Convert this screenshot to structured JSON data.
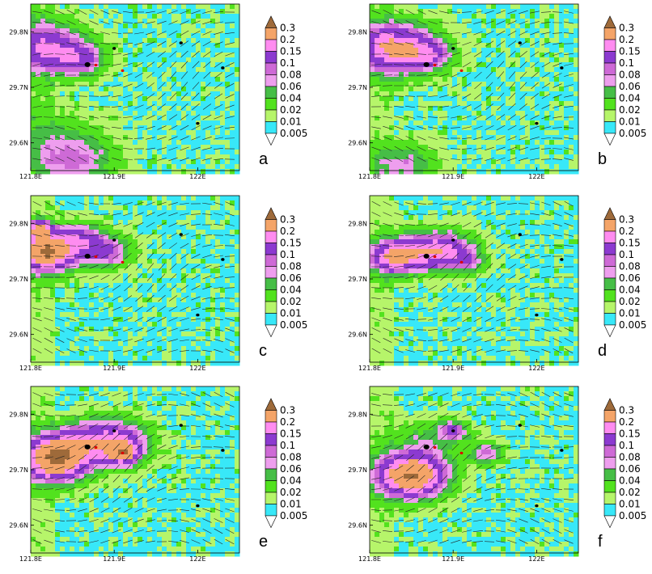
{
  "colors": {
    "levels": [
      "#ffffff",
      "#38e8f8",
      "#b6f56a",
      "#52e21e",
      "#46be46",
      "#ee9eee",
      "#ce6ad6",
      "#8c3ad0",
      "#ff8cf0",
      "#f4a468",
      "#9e6a3a"
    ],
    "palette_note": "white, cyan, lime, green, dark green, light pink, pink, orchid, purple, orange, brown"
  },
  "chart_data": [
    {
      "type": "heatmap",
      "panel": "a",
      "xticks": [
        "121.8E",
        "121.9E",
        "122E"
      ],
      "yticks": [
        "29.6N",
        "29.7N",
        "29.8N"
      ],
      "xlim": [
        121.8,
        122.05
      ],
      "ylim": [
        29.55,
        29.85
      ],
      "colorbar": [
        "0.3",
        "0.2",
        "0.15",
        "0.1",
        "0.08",
        "0.06",
        "0.04",
        "0.02",
        "0.01",
        "0.005"
      ],
      "blobs": [
        {
          "lon": 121.82,
          "lat": 29.77,
          "r": 0.045,
          "peak": 0.15
        },
        {
          "lon": 121.86,
          "lat": 29.75,
          "r": 0.03,
          "peak": 0.1
        },
        {
          "lon": 121.85,
          "lat": 29.57,
          "r": 0.05,
          "peak": 0.08
        },
        {
          "lon": 121.82,
          "lat": 29.62,
          "r": 0.05,
          "peak": 0.02
        }
      ]
    },
    {
      "type": "heatmap",
      "panel": "b",
      "xticks": [
        "121.8E",
        "121.9E",
        "122E"
      ],
      "yticks": [
        "29.6N",
        "29.7N",
        "29.8N"
      ],
      "xlim": [
        121.8,
        122.05
      ],
      "ylim": [
        29.55,
        29.85
      ],
      "colorbar": [
        "0.3",
        "0.2",
        "0.15",
        "0.1",
        "0.08",
        "0.06",
        "0.04",
        "0.02",
        "0.01",
        "0.005"
      ],
      "blobs": [
        {
          "lon": 121.83,
          "lat": 29.77,
          "r": 0.045,
          "peak": 0.2
        },
        {
          "lon": 121.87,
          "lat": 29.76,
          "r": 0.03,
          "peak": 0.1
        },
        {
          "lon": 121.84,
          "lat": 29.56,
          "r": 0.04,
          "peak": 0.06
        }
      ]
    },
    {
      "type": "heatmap",
      "panel": "c",
      "xticks": [
        "121.8E",
        "121.9E",
        "122E"
      ],
      "yticks": [
        "29.6N",
        "29.7N",
        "29.8N"
      ],
      "xlim": [
        121.8,
        122.05
      ],
      "ylim": [
        29.55,
        29.85
      ],
      "colorbar": [
        "0.3",
        "0.2",
        "0.15",
        "0.1",
        "0.08",
        "0.06",
        "0.04",
        "0.02",
        "0.01",
        "0.005"
      ],
      "blobs": [
        {
          "lon": 121.82,
          "lat": 29.75,
          "r": 0.035,
          "peak": 0.3
        },
        {
          "lon": 121.86,
          "lat": 29.77,
          "r": 0.03,
          "peak": 0.1
        },
        {
          "lon": 121.89,
          "lat": 29.75,
          "r": 0.03,
          "peak": 0.1
        },
        {
          "lon": 121.81,
          "lat": 29.79,
          "r": 0.015,
          "peak": 0.2
        }
      ]
    },
    {
      "type": "heatmap",
      "panel": "d",
      "xticks": [
        "121.8E",
        "121.9E",
        "122E"
      ],
      "yticks": [
        "29.6N",
        "29.7N",
        "29.8N"
      ],
      "xlim": [
        121.8,
        122.05
      ],
      "ylim": [
        29.55,
        29.85
      ],
      "colorbar": [
        "0.3",
        "0.2",
        "0.15",
        "0.1",
        "0.08",
        "0.06",
        "0.04",
        "0.02",
        "0.01",
        "0.005"
      ],
      "blobs": [
        {
          "lon": 121.83,
          "lat": 29.74,
          "r": 0.03,
          "peak": 0.2
        },
        {
          "lon": 121.87,
          "lat": 29.75,
          "r": 0.035,
          "peak": 0.15
        },
        {
          "lon": 121.9,
          "lat": 29.75,
          "r": 0.03,
          "peak": 0.1
        },
        {
          "lon": 121.92,
          "lat": 29.73,
          "r": 0.02,
          "peak": 0.06
        }
      ]
    },
    {
      "type": "heatmap",
      "panel": "e",
      "xticks": [
        "121.8E",
        "121.9E",
        "122E"
      ],
      "yticks": [
        "29.6N",
        "29.7N",
        "29.8N"
      ],
      "xlim": [
        121.8,
        122.05
      ],
      "ylim": [
        29.55,
        29.85
      ],
      "colorbar": [
        "0.3",
        "0.2",
        "0.15",
        "0.1",
        "0.08",
        "0.06",
        "0.04",
        "0.02",
        "0.01",
        "0.005"
      ],
      "blobs": [
        {
          "lon": 121.83,
          "lat": 29.72,
          "r": 0.04,
          "peak": 0.3
        },
        {
          "lon": 121.9,
          "lat": 29.75,
          "r": 0.04,
          "peak": 0.15
        },
        {
          "lon": 121.86,
          "lat": 29.75,
          "r": 0.035,
          "peak": 0.1
        },
        {
          "lon": 121.91,
          "lat": 29.73,
          "r": 0.02,
          "peak": 0.2
        }
      ]
    },
    {
      "type": "heatmap",
      "panel": "f",
      "xticks": [
        "121.8E",
        "121.9E",
        "122E"
      ],
      "yticks": [
        "29.6N",
        "29.7N",
        "29.8N"
      ],
      "xlim": [
        121.8,
        122.05
      ],
      "ylim": [
        29.55,
        29.85
      ],
      "colorbar": [
        "0.3",
        "0.2",
        "0.15",
        "0.1",
        "0.08",
        "0.06",
        "0.04",
        "0.02",
        "0.01",
        "0.005"
      ],
      "blobs": [
        {
          "lon": 121.85,
          "lat": 29.69,
          "r": 0.04,
          "peak": 0.3
        },
        {
          "lon": 121.9,
          "lat": 29.77,
          "r": 0.018,
          "peak": 0.1
        },
        {
          "lon": 121.94,
          "lat": 29.73,
          "r": 0.02,
          "peak": 0.08
        },
        {
          "lon": 121.87,
          "lat": 29.75,
          "r": 0.04,
          "peak": 0.04
        }
      ]
    }
  ],
  "stations": [
    {
      "lon": 121.868,
      "lat": 29.741,
      "color": "#000000",
      "r": 3
    },
    {
      "lon": 121.878,
      "lat": 29.74,
      "color": "#e00000",
      "r": 1.6
    },
    {
      "lon": 121.9,
      "lat": 29.77,
      "color": "#000000",
      "r": 1.8
    },
    {
      "lon": 121.91,
      "lat": 29.73,
      "color": "#e00000",
      "r": 1.6
    },
    {
      "lon": 121.98,
      "lat": 29.78,
      "color": "#000000",
      "r": 1.8
    },
    {
      "lon": 122.03,
      "lat": 29.735,
      "color": "#000000",
      "r": 1.8
    },
    {
      "lon": 122.0,
      "lat": 29.635,
      "color": "#000000",
      "r": 1.8
    }
  ]
}
